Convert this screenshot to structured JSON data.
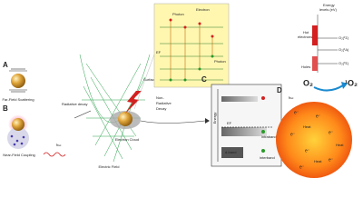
{
  "panel_a": {
    "label": "A",
    "caption": "Far-Field Scattering"
  },
  "panel_b": {
    "label": "B",
    "caption": "Near-Field Coupling"
  },
  "center": {
    "radiative_decay": "Radiative decay",
    "photon_energy": "ħω",
    "surface_plasmon": "Surface plasmon",
    "electron_cloud": "Electron Cloud",
    "electric_field": "Electric Field",
    "non_radiative_decay": [
      "Non-",
      "Radiative",
      "Decay"
    ]
  },
  "inset": {
    "electron": "Electron",
    "photon_top": "Photon",
    "photon_right": "Photon",
    "fermi_level": "EF"
  },
  "panel_c": {
    "label": "C",
    "energy": "Energy",
    "fermi_level": "EF",
    "intraband": "intraband",
    "d_band": "d-band",
    "interband": "interband"
  },
  "panel_d": {
    "label": "D",
    "photon_energy": "ħω",
    "electrons": [
      "e⁻",
      "e⁻",
      "e⁻",
      "e⁻",
      "e⁻",
      "e⁻",
      "e⁻"
    ],
    "heat": [
      "Heat",
      "Heat",
      "Heat"
    ],
    "oxygen": "O₂",
    "singlet_oxygen": "¹O₂"
  },
  "energy_levels": {
    "title": [
      "Energy",
      "levels (eV)"
    ],
    "hot_electrons": [
      "Hot",
      "electrons"
    ],
    "holes": "Holes",
    "levels": [
      "O₂(¹Σ)",
      "O₂(¹Δ)",
      "O₂(³Σ)"
    ]
  }
}
